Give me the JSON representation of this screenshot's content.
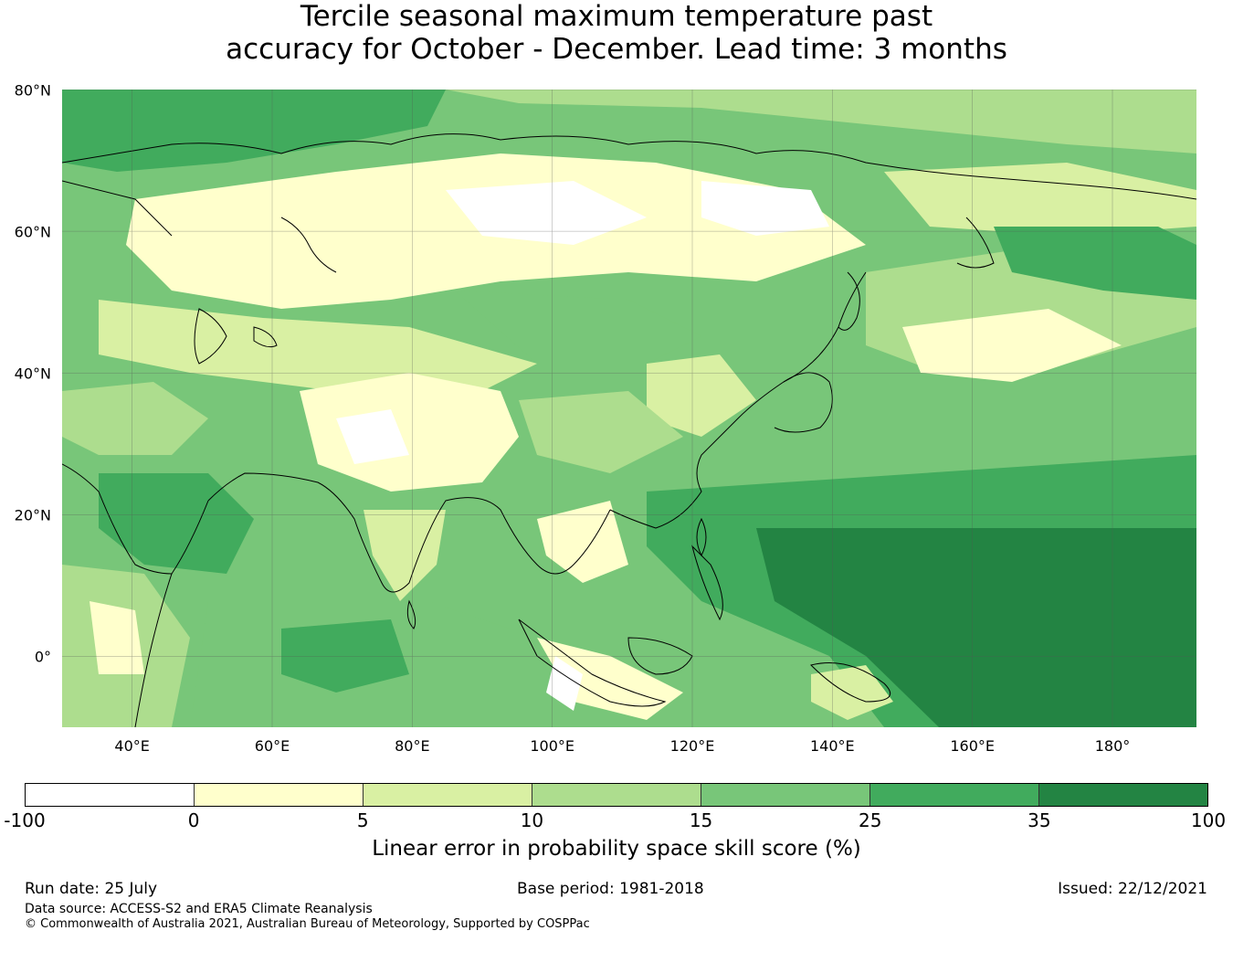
{
  "title": {
    "line1": "Tercile seasonal maximum temperature past",
    "line2": "accuracy for October - December. Lead time: 3 months"
  },
  "map": {
    "lat_labels": [
      "80°N",
      "60°N",
      "40°N",
      "20°N",
      "0°"
    ],
    "lon_labels": [
      "40°E",
      "60°E",
      "80°E",
      "100°E",
      "120°E",
      "140°E",
      "160°E",
      "180°"
    ],
    "lat_range": [
      -10,
      80
    ],
    "lon_range": [
      30,
      192
    ],
    "grid": true
  },
  "colorbar": {
    "ticks": [
      "-100",
      "0",
      "5",
      "10",
      "15",
      "25",
      "35",
      "100"
    ],
    "colors": [
      "#ffffff",
      "#ffffcc",
      "#d9f0a3",
      "#addd8e",
      "#78c679",
      "#41ab5d",
      "#238443"
    ],
    "label": "Linear error in probability space skill score (%)"
  },
  "footer": {
    "run_date": "Run date: 25 July",
    "base_period": "Base period: 1981-2018",
    "issued": "Issued: 22/12/2021",
    "data_source": "Data source: ACCESS-S2 and ERA5 Climate Reanalysis",
    "copyright": "© Commonwealth of Australia 2021, Australian Bureau of Meteorology, Supported by COSPPac"
  }
}
